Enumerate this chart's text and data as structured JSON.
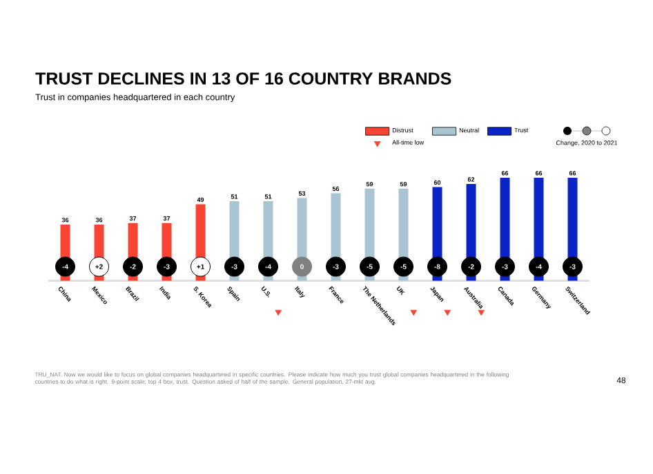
{
  "chart_data": {
    "type": "bar",
    "title": "TRUST DECLINES IN 13 OF 16 COUNTRY BRANDS",
    "subtitle": "Trust in companies headquartered in each country",
    "categories": [
      "China",
      "Mexico",
      "Brazil",
      "India",
      "S. Korea",
      "Spain",
      "U.S.",
      "Italy",
      "France",
      "The Netherlands",
      "UK",
      "Japan",
      "Australia",
      "Canada",
      "Germany",
      "Switzerland"
    ],
    "series": [
      {
        "name": "Distrust",
        "color": "#f84433",
        "values": [
          36,
          36,
          37,
          37,
          49,
          null,
          null,
          null,
          null,
          null,
          null,
          null,
          null,
          null,
          null,
          null
        ],
        "value_labels": [
          "36",
          "36",
          "37",
          "37",
          "49",
          null,
          null,
          null,
          null,
          null,
          null,
          null,
          null,
          null,
          null,
          null
        ]
      },
      {
        "name": "Neutral",
        "color": "#a9c5d1",
        "values": [
          null,
          null,
          null,
          null,
          null,
          51,
          51,
          53,
          56,
          59,
          59,
          null,
          null,
          null,
          null,
          null
        ],
        "value_labels": [
          null,
          null,
          null,
          null,
          null,
          "51",
          "51",
          "53",
          "56",
          "59",
          "59",
          null,
          null,
          null,
          null,
          null
        ]
      },
      {
        "name": "Trust",
        "color": "#0b24c8",
        "values": [
          null,
          null,
          null,
          null,
          null,
          null,
          null,
          null,
          null,
          null,
          null,
          60,
          62,
          66,
          66,
          66
        ],
        "value_labels": [
          null,
          null,
          null,
          null,
          null,
          null,
          null,
          null,
          null,
          null,
          null,
          "60",
          "62",
          "66",
          "66",
          "66"
        ]
      },
      {
        "name": "All-time low",
        "type": "scatter",
        "marker": "triangle",
        "color": "#f84433",
        "x": [
          "U.S.",
          "UK",
          "Japan",
          "Australia"
        ],
        "values": [
          -20,
          -20,
          -20,
          -20
        ]
      }
    ],
    "tick_labels": "x",
    "legend": "top right",
    "annotations": [
      {
        "text": "-4",
        "x": "China",
        "y": 9
      },
      {
        "text": "+2",
        "x": "Mexico",
        "y": 9
      },
      {
        "text": "-2",
        "x": "Brazil",
        "y": 9
      },
      {
        "text": "-3",
        "x": "India",
        "y": 9
      },
      {
        "text": "+1",
        "x": "S. Korea",
        "y": 9
      },
      {
        "text": "-3",
        "x": "Spain",
        "y": 9
      },
      {
        "text": "-4",
        "x": "U.S.",
        "y": 9
      },
      {
        "text": "0",
        "x": "Italy",
        "y": 9
      },
      {
        "text": "-3",
        "x": "France",
        "y": 9
      },
      {
        "text": "-5",
        "x": "The Netherlands",
        "y": 9
      },
      {
        "text": "-5",
        "x": "UK",
        "y": 9
      },
      {
        "text": "-8",
        "x": "Japan",
        "y": 9
      },
      {
        "text": "-2",
        "x": "Australia",
        "y": 9
      },
      {
        "text": "-3",
        "x": "Canada",
        "y": 9
      },
      {
        "text": "-4",
        "x": "Germany",
        "y": 9
      },
      {
        "text": "-3",
        "x": "Switzerland",
        "y": 9
      },
      "Change, 2020 to 2021",
      "TRU_NAT. Now we would like to focus on global companies headquartered in specific countries. Please indicate how much you trust global companies headquartered in the following countries to do what is right. 9-point scale; top 4 box, trust. Question asked of half of the sample. General population, 27-mkt avg.",
      "48"
    ]
  }
}
